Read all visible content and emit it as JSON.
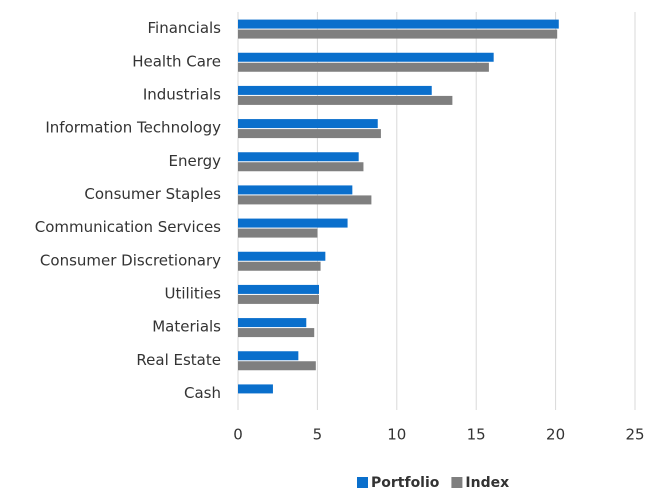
{
  "chart_data": {
    "type": "bar",
    "orientation": "horizontal",
    "categories": [
      "Financials",
      "Health Care",
      "Industrials",
      "Information Technology",
      "Energy",
      "Consumer Staples",
      "Communication Services",
      "Consumer Discretionary",
      "Utilities",
      "Materials",
      "Real Estate",
      "Cash"
    ],
    "series": [
      {
        "name": "Portfolio",
        "color": "#0a6fcc",
        "values": [
          20.2,
          16.1,
          12.2,
          8.8,
          7.6,
          7.2,
          6.9,
          5.5,
          5.1,
          4.3,
          3.8,
          2.2
        ]
      },
      {
        "name": "Index",
        "color": "#7f7f7f",
        "values": [
          20.1,
          15.8,
          13.5,
          9.0,
          7.9,
          8.4,
          5.0,
          5.2,
          5.1,
          4.8,
          4.9,
          0
        ]
      }
    ],
    "xlim": [
      0,
      25
    ],
    "xticks": [
      0,
      5,
      10,
      15,
      20,
      25
    ],
    "grid": true,
    "legend": "bottom"
  }
}
